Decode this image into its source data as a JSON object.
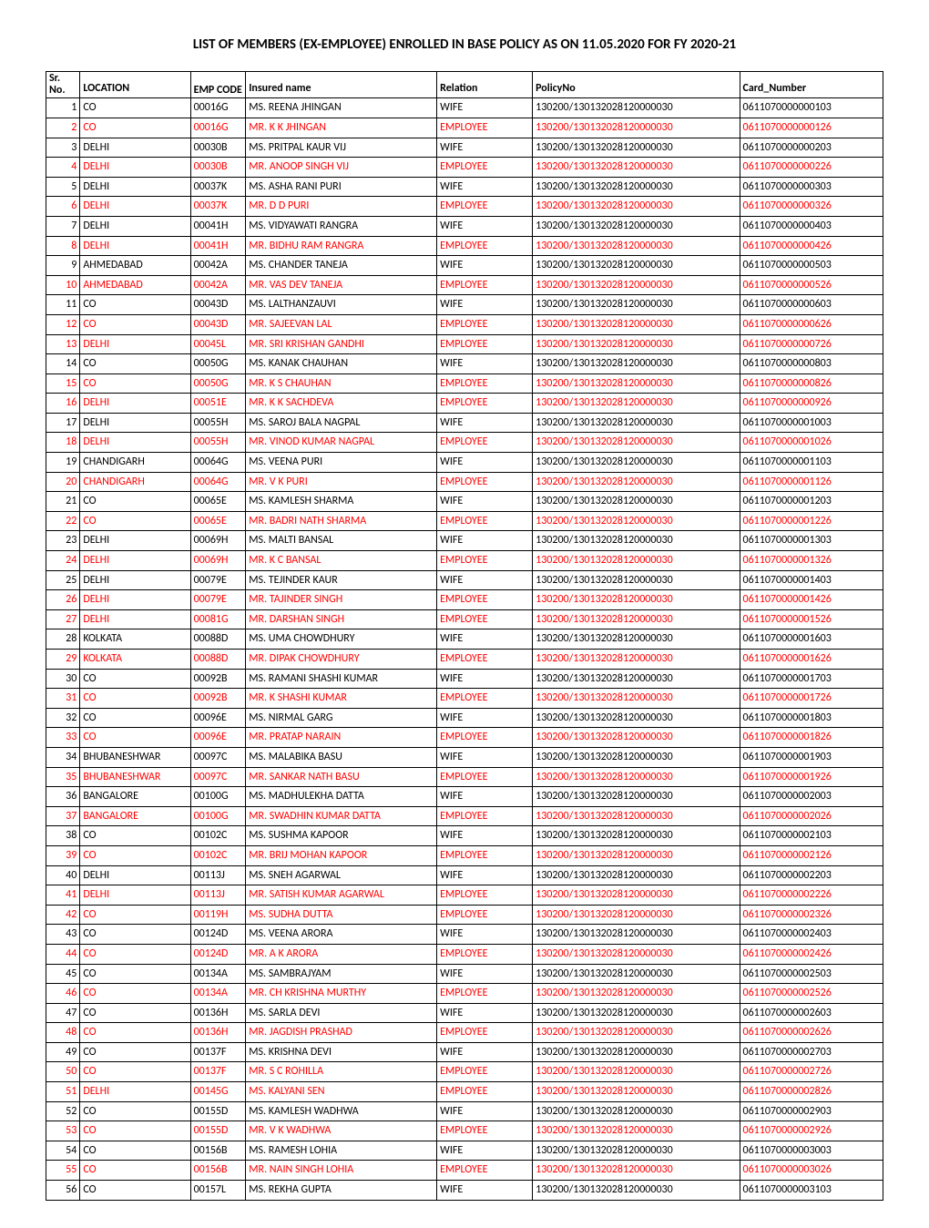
{
  "title": "LIST OF MEMBERS (EX-EMPLOYEE) ENROLLED IN BASE POLICY AS ON 11.05.2020 FOR FY 2020-21",
  "columns": [
    "Sr. No.",
    "LOCATION",
    "EMP CODE",
    "Insured name",
    "Relation",
    "PolicyNo",
    "Card_Number"
  ],
  "colors": {
    "highlight": "#ff0000",
    "normal": "#000000",
    "border": "#000000",
    "background": "#ffffff"
  },
  "rows": [
    {
      "sr": 1,
      "location": "CO",
      "emp": "00016G",
      "name": "MS. REENA  JHINGAN",
      "relation": "WIFE",
      "policy": "130200/130132028120000030",
      "card": "0611070000000103",
      "red": false
    },
    {
      "sr": 2,
      "location": "CO",
      "emp": "00016G",
      "name": "MR. K K JHINGAN",
      "relation": "EMPLOYEE",
      "policy": "130200/130132028120000030",
      "card": "0611070000000126",
      "red": true
    },
    {
      "sr": 3,
      "location": "DELHI",
      "emp": "00030B",
      "name": "MS. PRITPAL KAUR VIJ",
      "relation": "WIFE",
      "policy": "130200/130132028120000030",
      "card": "0611070000000203",
      "red": false
    },
    {
      "sr": 4,
      "location": "DELHI",
      "emp": "00030B",
      "name": "MR. ANOOP SINGH VIJ",
      "relation": "EMPLOYEE",
      "policy": "130200/130132028120000030",
      "card": "0611070000000226",
      "red": true
    },
    {
      "sr": 5,
      "location": "DELHI",
      "emp": "00037K",
      "name": "MS. ASHA RANI PURI",
      "relation": "WIFE",
      "policy": "130200/130132028120000030",
      "card": "0611070000000303",
      "red": false
    },
    {
      "sr": 6,
      "location": "DELHI",
      "emp": "00037K",
      "name": "MR. D D PURI",
      "relation": "EMPLOYEE",
      "policy": "130200/130132028120000030",
      "card": "0611070000000326",
      "red": true
    },
    {
      "sr": 7,
      "location": "DELHI",
      "emp": "00041H",
      "name": "MS. VIDYAWATI  RANGRA",
      "relation": "WIFE",
      "policy": "130200/130132028120000030",
      "card": "0611070000000403",
      "red": false
    },
    {
      "sr": 8,
      "location": "DELHI",
      "emp": "00041H",
      "name": "MR. BIDHU RAM RANGRA",
      "relation": "EMPLOYEE",
      "policy": "130200/130132028120000030",
      "card": "0611070000000426",
      "red": true
    },
    {
      "sr": 9,
      "location": "AHMEDABAD",
      "emp": "00042A",
      "name": "MS. CHANDER  TANEJA",
      "relation": "WIFE",
      "policy": "130200/130132028120000030",
      "card": "0611070000000503",
      "red": false
    },
    {
      "sr": 10,
      "location": "AHMEDABAD",
      "emp": "00042A",
      "name": "MR. VAS DEV TANEJA",
      "relation": "EMPLOYEE",
      "policy": "130200/130132028120000030",
      "card": "0611070000000526",
      "red": true
    },
    {
      "sr": 11,
      "location": "CO",
      "emp": "00043D",
      "name": "MS. LALTHANZAUVI",
      "relation": "WIFE",
      "policy": "130200/130132028120000030",
      "card": "0611070000000603",
      "red": false
    },
    {
      "sr": 12,
      "location": "CO",
      "emp": "00043D",
      "name": "MR. SAJEEVAN  LAL",
      "relation": "EMPLOYEE",
      "policy": "130200/130132028120000030",
      "card": "0611070000000626",
      "red": true
    },
    {
      "sr": 13,
      "location": "DELHI",
      "emp": "00045L",
      "name": "MR. SRI KRISHAN GANDHI",
      "relation": "EMPLOYEE",
      "policy": "130200/130132028120000030",
      "card": "0611070000000726",
      "red": true
    },
    {
      "sr": 14,
      "location": "CO",
      "emp": "00050G",
      "name": "MS. KANAK  CHAUHAN",
      "relation": "WIFE",
      "policy": "130200/130132028120000030",
      "card": "0611070000000803",
      "red": false
    },
    {
      "sr": 15,
      "location": "CO",
      "emp": "00050G",
      "name": "MR. K S CHAUHAN",
      "relation": "EMPLOYEE",
      "policy": "130200/130132028120000030",
      "card": "0611070000000826",
      "red": true
    },
    {
      "sr": 16,
      "location": "DELHI",
      "emp": "00051E",
      "name": "MR. K K SACHDEVA",
      "relation": "EMPLOYEE",
      "policy": "130200/130132028120000030",
      "card": "0611070000000926",
      "red": true
    },
    {
      "sr": 17,
      "location": "DELHI",
      "emp": "00055H",
      "name": "MS. SAROJ BALA NAGPAL",
      "relation": "WIFE",
      "policy": "130200/130132028120000030",
      "card": "0611070000001003",
      "red": false
    },
    {
      "sr": 18,
      "location": "DELHI",
      "emp": "00055H",
      "name": "MR. VINOD KUMAR NAGPAL",
      "relation": "EMPLOYEE",
      "policy": "130200/130132028120000030",
      "card": "0611070000001026",
      "red": true
    },
    {
      "sr": 19,
      "location": "CHANDIGARH",
      "emp": "00064G",
      "name": "MS. VEENA  PURI",
      "relation": "WIFE",
      "policy": "130200/130132028120000030",
      "card": "0611070000001103",
      "red": false
    },
    {
      "sr": 20,
      "location": "CHANDIGARH",
      "emp": "00064G",
      "name": "MR. V K PURI",
      "relation": "EMPLOYEE",
      "policy": "130200/130132028120000030",
      "card": "0611070000001126",
      "red": true
    },
    {
      "sr": 21,
      "location": "CO",
      "emp": "00065E",
      "name": "MS. KAMLESH  SHARMA",
      "relation": "WIFE",
      "policy": "130200/130132028120000030",
      "card": "0611070000001203",
      "red": false
    },
    {
      "sr": 22,
      "location": "CO",
      "emp": "00065E",
      "name": "MR. BADRI NATH SHARMA",
      "relation": "EMPLOYEE",
      "policy": "130200/130132028120000030",
      "card": "0611070000001226",
      "red": true
    },
    {
      "sr": 23,
      "location": "DELHI",
      "emp": "00069H",
      "name": "MS. MALTI  BANSAL",
      "relation": "WIFE",
      "policy": "130200/130132028120000030",
      "card": "0611070000001303",
      "red": false
    },
    {
      "sr": 24,
      "location": "DELHI",
      "emp": "00069H",
      "name": "MR. K C BANSAL",
      "relation": "EMPLOYEE",
      "policy": "130200/130132028120000030",
      "card": "0611070000001326",
      "red": true
    },
    {
      "sr": 25,
      "location": "DELHI",
      "emp": "00079E",
      "name": "MS. TEJINDER  KAUR",
      "relation": "WIFE",
      "policy": "130200/130132028120000030",
      "card": "0611070000001403",
      "red": false
    },
    {
      "sr": 26,
      "location": "DELHI",
      "emp": "00079E",
      "name": "MR. TAJINDER  SINGH",
      "relation": "EMPLOYEE",
      "policy": "130200/130132028120000030",
      "card": "0611070000001426",
      "red": true
    },
    {
      "sr": 27,
      "location": "DELHI",
      "emp": "00081G",
      "name": "MR. DARSHAN  SINGH",
      "relation": "EMPLOYEE",
      "policy": "130200/130132028120000030",
      "card": "0611070000001526",
      "red": true
    },
    {
      "sr": 28,
      "location": "KOLKATA",
      "emp": "00088D",
      "name": "MS. UMA  CHOWDHURY",
      "relation": "WIFE",
      "policy": "130200/130132028120000030",
      "card": "0611070000001603",
      "red": false
    },
    {
      "sr": 29,
      "location": "KOLKATA",
      "emp": "00088D",
      "name": "MR. DIPAK  CHOWDHURY",
      "relation": "EMPLOYEE",
      "policy": "130200/130132028120000030",
      "card": "0611070000001626",
      "red": true
    },
    {
      "sr": 30,
      "location": "CO",
      "emp": "00092B",
      "name": "MS. RAMANI SHASHI KUMAR",
      "relation": "WIFE",
      "policy": "130200/130132028120000030",
      "card": "0611070000001703",
      "red": false
    },
    {
      "sr": 31,
      "location": "CO",
      "emp": "00092B",
      "name": "MR. K SHASHI KUMAR",
      "relation": "EMPLOYEE",
      "policy": "130200/130132028120000030",
      "card": "0611070000001726",
      "red": true
    },
    {
      "sr": 32,
      "location": "CO",
      "emp": "00096E",
      "name": "MS. NIRMAL  GARG",
      "relation": "WIFE",
      "policy": "130200/130132028120000030",
      "card": "0611070000001803",
      "red": false
    },
    {
      "sr": 33,
      "location": "CO",
      "emp": "00096E",
      "name": "MR. PRATAP  NARAIN",
      "relation": "EMPLOYEE",
      "policy": "130200/130132028120000030",
      "card": "0611070000001826",
      "red": true
    },
    {
      "sr": 34,
      "location": "BHUBANESHWAR",
      "emp": "00097C",
      "name": "MS. MALABIKA  BASU",
      "relation": "WIFE",
      "policy": "130200/130132028120000030",
      "card": "0611070000001903",
      "red": false
    },
    {
      "sr": 35,
      "location": "BHUBANESHWAR",
      "emp": "00097C",
      "name": "MR. SANKAR NATH BASU",
      "relation": "EMPLOYEE",
      "policy": "130200/130132028120000030",
      "card": "0611070000001926",
      "red": true
    },
    {
      "sr": 36,
      "location": "BANGALORE",
      "emp": "00100G",
      "name": "MS. MADHULEKHA  DATTA",
      "relation": "WIFE",
      "policy": "130200/130132028120000030",
      "card": "0611070000002003",
      "red": false
    },
    {
      "sr": 37,
      "location": "BANGALORE",
      "emp": "00100G",
      "name": "MR. SWADHIN KUMAR DATTA",
      "relation": "EMPLOYEE",
      "policy": "130200/130132028120000030",
      "card": "0611070000002026",
      "red": true
    },
    {
      "sr": 38,
      "location": "CO",
      "emp": "00102C",
      "name": "MS. SUSHMA  KAPOOR",
      "relation": "WIFE",
      "policy": "130200/130132028120000030",
      "card": "0611070000002103",
      "red": false
    },
    {
      "sr": 39,
      "location": "CO",
      "emp": "00102C",
      "name": "MR. BRIJ MOHAN KAPOOR",
      "relation": "EMPLOYEE",
      "policy": "130200/130132028120000030",
      "card": "0611070000002126",
      "red": true
    },
    {
      "sr": 40,
      "location": "DELHI",
      "emp": "00113J",
      "name": "MS. SNEH  AGARWAL",
      "relation": "WIFE",
      "policy": "130200/130132028120000030",
      "card": "0611070000002203",
      "red": false
    },
    {
      "sr": 41,
      "location": "DELHI",
      "emp": "00113J",
      "name": "MR. SATISH KUMAR AGARWAL",
      "relation": "EMPLOYEE",
      "policy": "130200/130132028120000030",
      "card": "0611070000002226",
      "red": true
    },
    {
      "sr": 42,
      "location": "CO",
      "emp": "00119H",
      "name": "MS. SUDHA  DUTTA",
      "relation": "EMPLOYEE",
      "policy": "130200/130132028120000030",
      "card": "0611070000002326",
      "red": true
    },
    {
      "sr": 43,
      "location": "CO",
      "emp": "00124D",
      "name": "MS. VEENA  ARORA",
      "relation": "WIFE",
      "policy": "130200/130132028120000030",
      "card": "0611070000002403",
      "red": false
    },
    {
      "sr": 44,
      "location": "CO",
      "emp": "00124D",
      "name": "MR. A K ARORA",
      "relation": "EMPLOYEE",
      "policy": "130200/130132028120000030",
      "card": "0611070000002426",
      "red": true
    },
    {
      "sr": 45,
      "location": "CO",
      "emp": "00134A",
      "name": "MS. SAMBRAJYAM",
      "relation": "WIFE",
      "policy": "130200/130132028120000030",
      "card": "0611070000002503",
      "red": false
    },
    {
      "sr": 46,
      "location": "CO",
      "emp": "00134A",
      "name": "MR. CH KRISHNA MURTHY",
      "relation": "EMPLOYEE",
      "policy": "130200/130132028120000030",
      "card": "0611070000002526",
      "red": true
    },
    {
      "sr": 47,
      "location": "CO",
      "emp": "00136H",
      "name": "MS. SARLA  DEVI",
      "relation": "WIFE",
      "policy": "130200/130132028120000030",
      "card": "0611070000002603",
      "red": false
    },
    {
      "sr": 48,
      "location": "CO",
      "emp": "00136H",
      "name": "MR. JAGDISH  PRASHAD",
      "relation": "EMPLOYEE",
      "policy": "130200/130132028120000030",
      "card": "0611070000002626",
      "red": true
    },
    {
      "sr": 49,
      "location": "CO",
      "emp": "00137F",
      "name": "MS. KRISHNA  DEVI",
      "relation": "WIFE",
      "policy": "130200/130132028120000030",
      "card": "0611070000002703",
      "red": false
    },
    {
      "sr": 50,
      "location": "CO",
      "emp": "00137F",
      "name": "MR. S C ROHILLA",
      "relation": "EMPLOYEE",
      "policy": "130200/130132028120000030",
      "card": "0611070000002726",
      "red": true
    },
    {
      "sr": 51,
      "location": "DELHI",
      "emp": "00145G",
      "name": "MS. KALYANI  SEN",
      "relation": "EMPLOYEE",
      "policy": "130200/130132028120000030",
      "card": "0611070000002826",
      "red": true
    },
    {
      "sr": 52,
      "location": "CO",
      "emp": "00155D",
      "name": "MS. KAMLESH  WADHWA",
      "relation": "WIFE",
      "policy": "130200/130132028120000030",
      "card": "0611070000002903",
      "red": false
    },
    {
      "sr": 53,
      "location": "CO",
      "emp": "00155D",
      "name": "MR. V K WADHWA",
      "relation": "EMPLOYEE",
      "policy": "130200/130132028120000030",
      "card": "0611070000002926",
      "red": true
    },
    {
      "sr": 54,
      "location": "CO",
      "emp": "00156B",
      "name": "MS. RAMESH  LOHIA",
      "relation": "WIFE",
      "policy": "130200/130132028120000030",
      "card": "0611070000003003",
      "red": false
    },
    {
      "sr": 55,
      "location": "CO",
      "emp": "00156B",
      "name": "MR. NAIN SINGH LOHIA",
      "relation": "EMPLOYEE",
      "policy": "130200/130132028120000030",
      "card": "0611070000003026",
      "red": true
    },
    {
      "sr": 56,
      "location": "CO",
      "emp": "00157L",
      "name": "MS. REKHA  GUPTA",
      "relation": "WIFE",
      "policy": "130200/130132028120000030",
      "card": "0611070000003103",
      "red": false
    }
  ]
}
